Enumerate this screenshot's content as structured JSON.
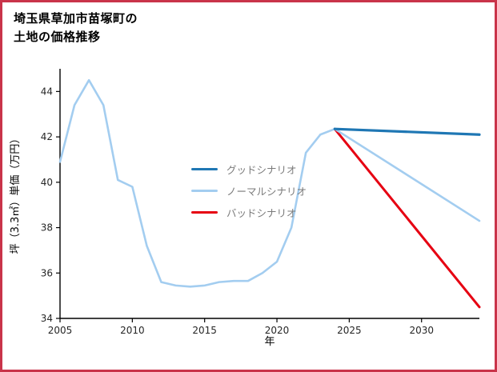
{
  "page": {
    "border_color": "#c9344a",
    "background": "#ffffff"
  },
  "title": {
    "line1": "埼玉県草加市苗塚町の",
    "line2": "土地の価格推移"
  },
  "chart_data": {
    "type": "line",
    "title": "埼玉県草加市苗塚町の土地の価格推移",
    "xlabel": "年",
    "ylabel": "坪（3.3㎡）単価（万円）",
    "xlim": [
      2005,
      2034
    ],
    "ylim": [
      34,
      45
    ],
    "xticks": [
      2005,
      2010,
      2015,
      2020,
      2025,
      2030
    ],
    "yticks": [
      34,
      36,
      38,
      40,
      42,
      44
    ],
    "grid": false,
    "legend_position": "center-left-inside",
    "series": [
      {
        "id": "good",
        "name": "グッドシナリオ",
        "color": "#1f77b4",
        "width": 3.2,
        "x": [
          2024,
          2034
        ],
        "y": [
          42.35,
          42.1
        ]
      },
      {
        "id": "normal",
        "name": "ノーマルシナリオ",
        "color": "#a3cdf0",
        "width": 2.6,
        "x": [
          2005,
          2006,
          2007,
          2008,
          2009,
          2010,
          2011,
          2012,
          2013,
          2014,
          2015,
          2016,
          2017,
          2018,
          2019,
          2020,
          2021,
          2022,
          2023,
          2024,
          2034
        ],
        "y": [
          40.9,
          43.4,
          44.5,
          43.4,
          40.1,
          39.8,
          37.2,
          35.6,
          35.45,
          35.4,
          35.45,
          35.6,
          35.65,
          35.65,
          36.0,
          36.5,
          38.0,
          41.3,
          42.1,
          42.35,
          38.3
        ]
      },
      {
        "id": "bad",
        "name": "バッドシナリオ",
        "color": "#e60012",
        "width": 3.0,
        "x": [
          2024,
          2034
        ],
        "y": [
          42.35,
          34.5
        ]
      }
    ]
  }
}
